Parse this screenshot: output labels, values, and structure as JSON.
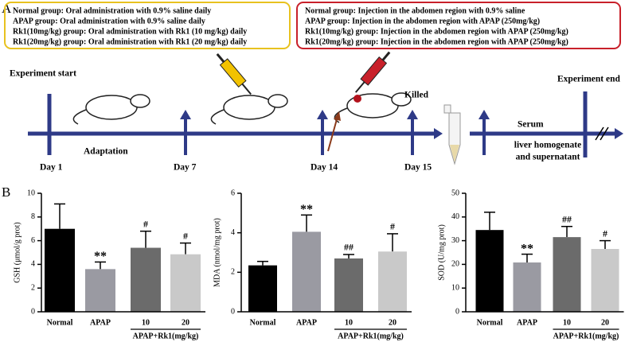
{
  "panel_labels": [
    "A",
    "B"
  ],
  "protocol_boxes": [
    {
      "lines": [
        "Normal group: Oral administration with 0.9% saline daily",
        "APAP group: Oral administration with 0.9% saline daily",
        "Rk1(10mg/kg) group: Oral administration with Rk1 (10 mg/kg) daily",
        "Rk1(20mg/kg) group: Oral administration with Rk1 (20 mg/kg) daily"
      ]
    },
    {
      "lines": [
        "Normal group: Injection in the abdomen region with 0.9% saline",
        "APAP group: Injection in the abdomen region with APAP (250mg/kg)",
        "Rk1(10mg/kg) group: Injection in the abdomen region with APAP (250mg/kg)",
        "Rk1(20mg/kg) group: Injection in the abdomen region with APAP (250mg/kg)"
      ]
    }
  ],
  "timeline": {
    "start": "Experiment start",
    "adaptation": "Adaptation",
    "days": [
      "Day 1",
      "Day 7",
      "Day 14",
      "Day 15"
    ],
    "killed": "Killed",
    "end": "Experiment end",
    "serum": "Serum",
    "liver": [
      "liver homogenate",
      "and supernatant"
    ]
  },
  "chart_data": [
    {
      "type": "bar",
      "y_label": "GSH (μmol/g prot)",
      "categories": [
        "Normal",
        "APAP",
        "10",
        "20"
      ],
      "group_label": "APAP+Rk1(mg/kg)",
      "values": [
        7.0,
        3.6,
        5.4,
        4.85
      ],
      "errors": [
        2.1,
        0.6,
        1.4,
        0.95
      ],
      "annotations": [
        null,
        "**",
        "#",
        "#"
      ],
      "colors": [
        "#000000",
        "#9a9aa2",
        "#6b6b6b",
        "#c9c9c9"
      ],
      "ylim": [
        0,
        10
      ],
      "yticks": [
        0,
        2,
        4,
        6,
        8,
        10
      ]
    },
    {
      "type": "bar",
      "y_label": "MDA (nmol/mg prot)",
      "categories": [
        "Normal",
        "APAP",
        "10",
        "20"
      ],
      "group_label": "APAP+Rk1(mg/kg)",
      "values": [
        2.35,
        4.05,
        2.7,
        3.05
      ],
      "errors": [
        0.2,
        0.85,
        0.2,
        0.9
      ],
      "annotations": [
        null,
        "**",
        "##",
        "#"
      ],
      "colors": [
        "#000000",
        "#9a9aa2",
        "#6b6b6b",
        "#c9c9c9"
      ],
      "ylim": [
        0,
        6
      ],
      "yticks": [
        0,
        2,
        4,
        6
      ]
    },
    {
      "type": "bar",
      "y_label": "SOD (U/mg prot)",
      "categories": [
        "Normal",
        "APAP",
        "10",
        "20"
      ],
      "group_label": "APAP+Rk1(mg/kg)",
      "values": [
        34.5,
        20.8,
        31.5,
        26.5
      ],
      "errors": [
        7.5,
        3.5,
        4.5,
        3.5
      ],
      "annotations": [
        null,
        "**",
        "##",
        "#"
      ],
      "colors": [
        "#000000",
        "#9a9aa2",
        "#6b6b6b",
        "#c9c9c9"
      ],
      "ylim": [
        0,
        50
      ],
      "yticks": [
        0,
        10,
        20,
        30,
        40,
        50
      ]
    }
  ]
}
